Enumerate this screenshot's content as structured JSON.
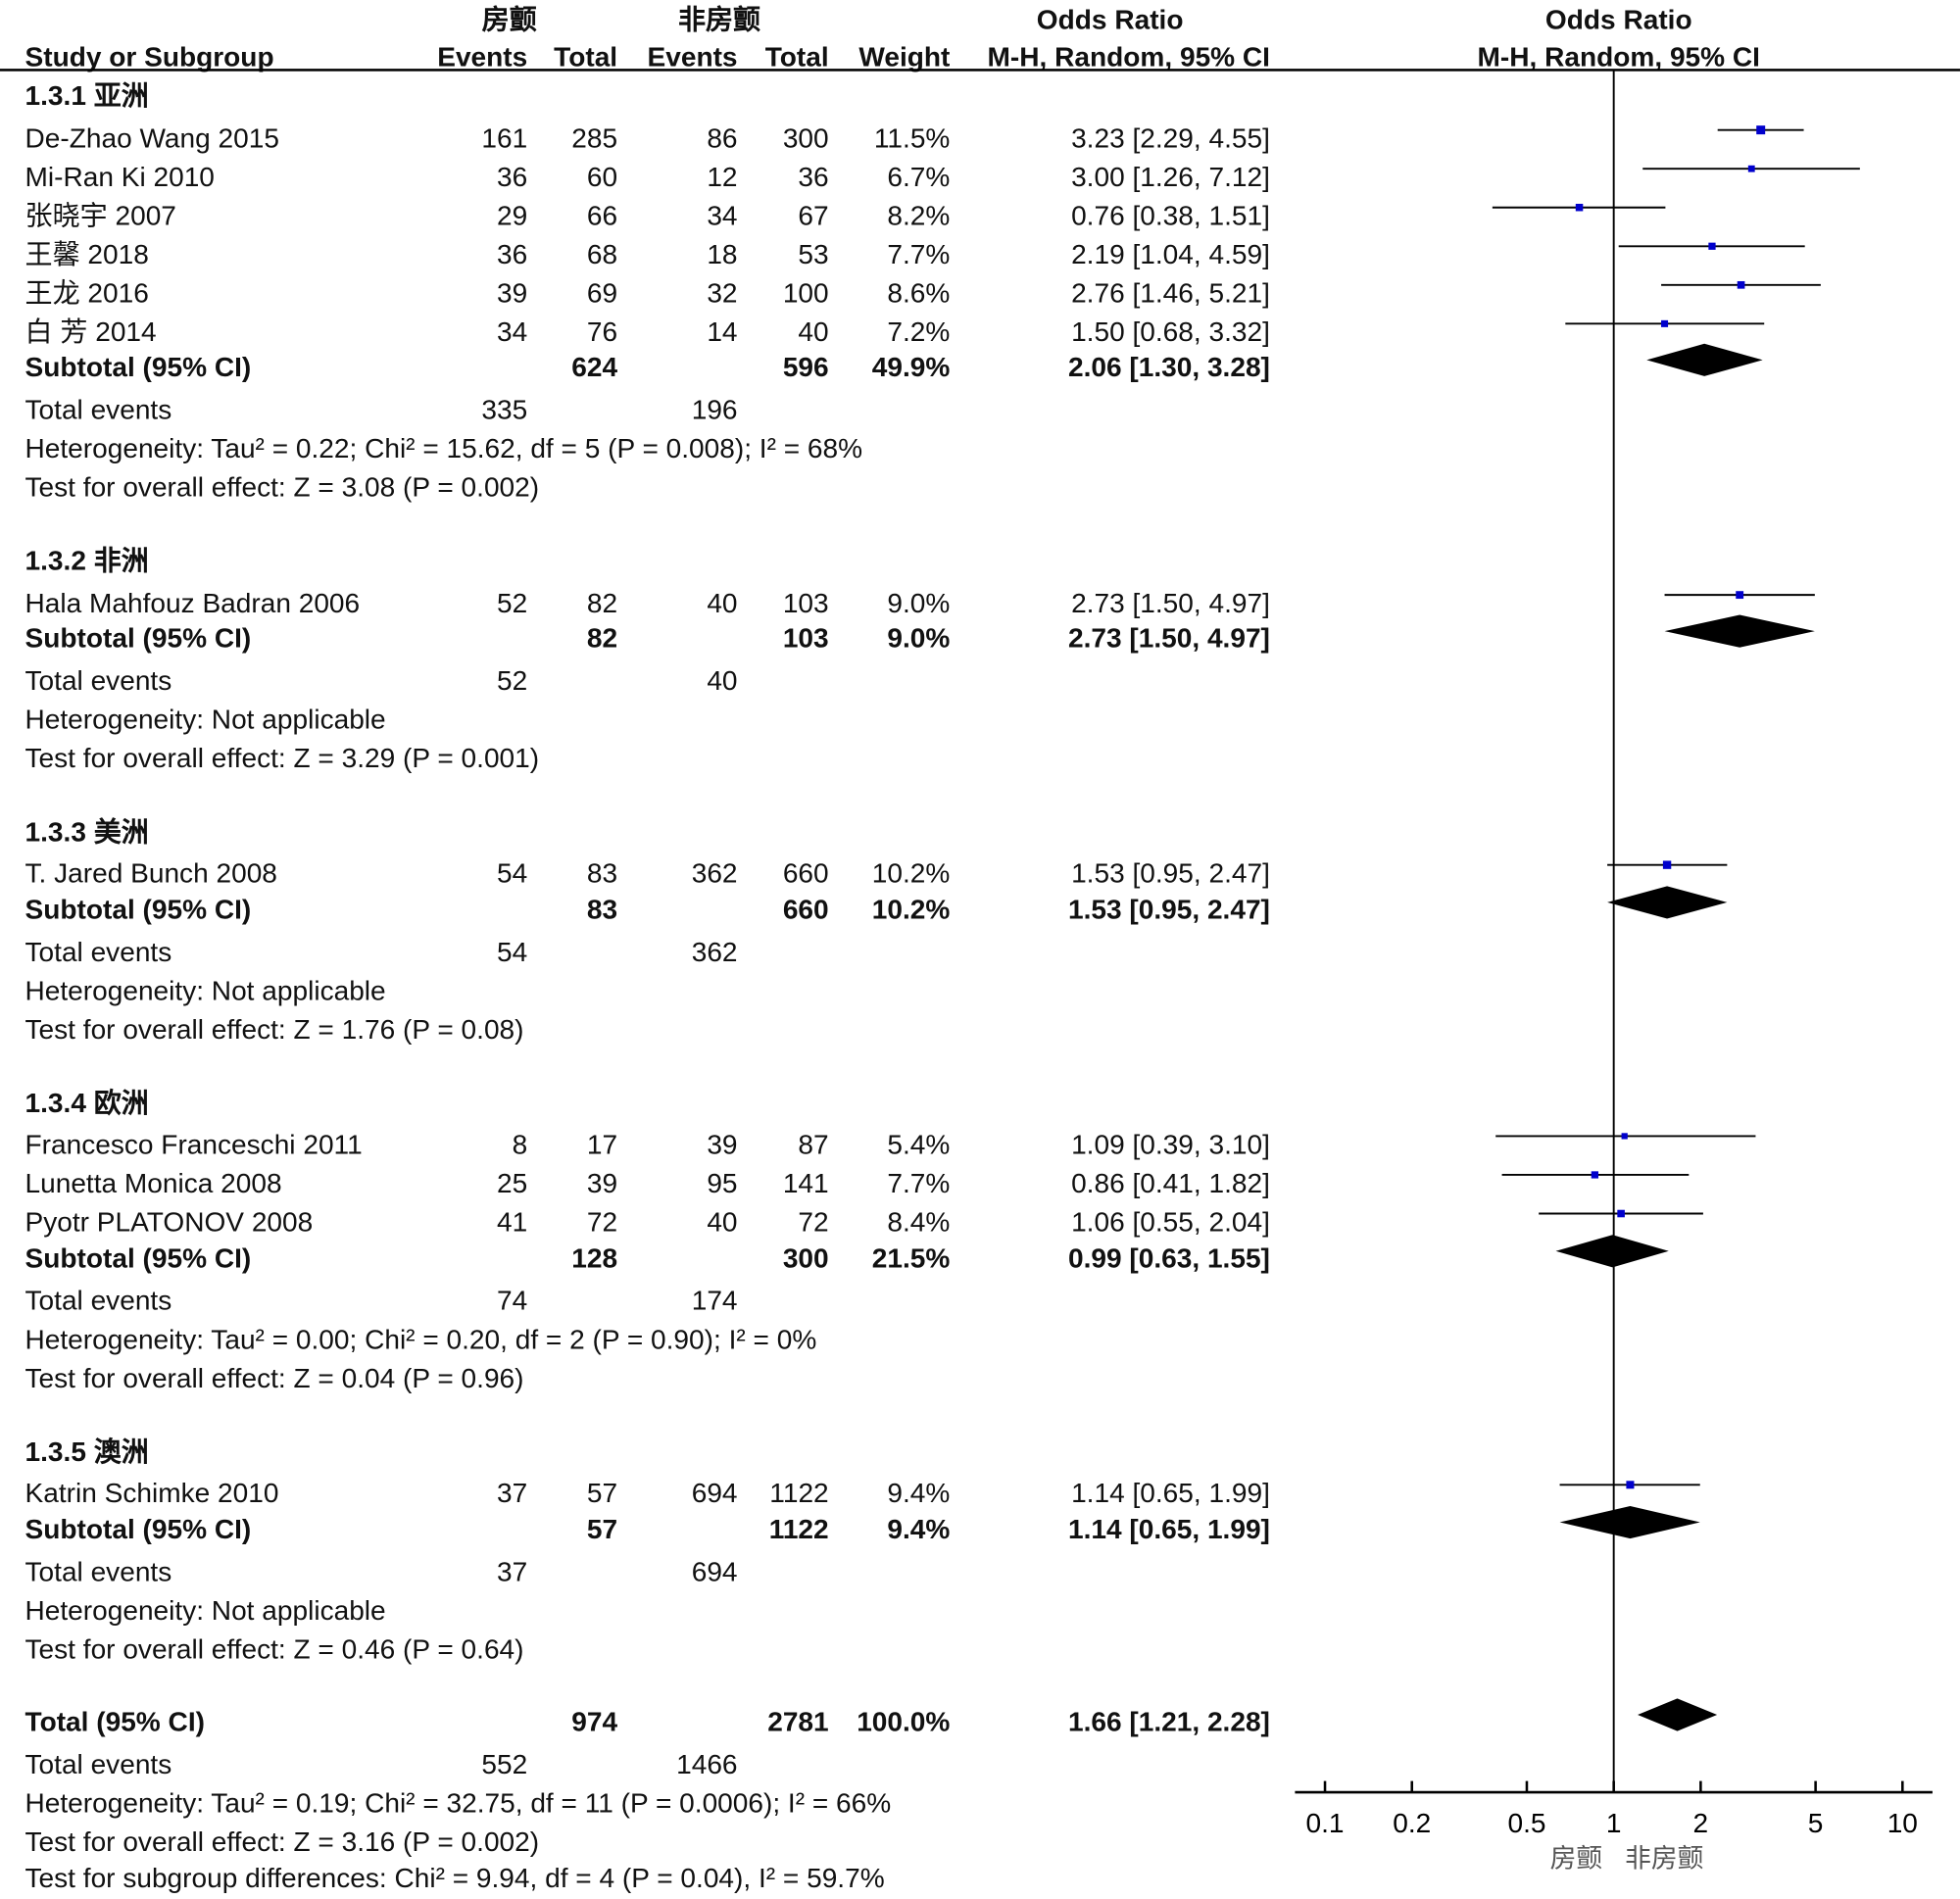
{
  "header": {
    "group1": "房颤",
    "group2": "非房颤",
    "or_title": "Odds Ratio",
    "study_col": "Study or Subgroup",
    "events": "Events",
    "total": "Total",
    "weight": "Weight",
    "method": "M-H, Random, 95% CI",
    "plot_title": "Odds Ratio",
    "plot_method": "M-H, Random, 95% CI"
  },
  "rows": [
    {
      "type": "group",
      "y": 77,
      "name": "1.3.1 亚洲"
    },
    {
      "type": "study",
      "y": 111,
      "name": "De-Zhao Wang 2015",
      "e1": "161",
      "t1": "285",
      "e2": "86",
      "t2": "300",
      "w": "11.5%",
      "ci": "3.23 [2.29, 4.55]"
    },
    {
      "type": "study",
      "y": 142,
      "name": "Mi-Ran Ki 2010",
      "e1": "36",
      "t1": "60",
      "e2": "12",
      "t2": "36",
      "w": "6.7%",
      "ci": "3.00 [1.26, 7.12]"
    },
    {
      "type": "study",
      "y": 173,
      "name": "张晓宇 2007",
      "e1": "29",
      "t1": "66",
      "e2": "34",
      "t2": "67",
      "w": "8.2%",
      "ci": "0.76 [0.38, 1.51]"
    },
    {
      "type": "study",
      "y": 204,
      "name": "王馨 2018",
      "e1": "36",
      "t1": "68",
      "e2": "18",
      "t2": "53",
      "w": "7.7%",
      "ci": "2.19 [1.04, 4.59]"
    },
    {
      "type": "study",
      "y": 235,
      "name": "王龙 2016",
      "e1": "39",
      "t1": "69",
      "e2": "32",
      "t2": "100",
      "w": "8.6%",
      "ci": "2.76 [1.46, 5.21]"
    },
    {
      "type": "study",
      "y": 266,
      "name": "白 芳 2014",
      "e1": "34",
      "t1": "76",
      "e2": "14",
      "t2": "40",
      "w": "7.2%",
      "ci": "1.50 [0.68, 3.32]"
    },
    {
      "type": "subtotal",
      "y": 294,
      "name": "Subtotal (95% CI)",
      "t1": "624",
      "t2": "596",
      "w": "49.9%",
      "ci": "2.06 [1.30, 3.28]"
    },
    {
      "type": "events",
      "y": 328,
      "name": "Total events",
      "e1": "335",
      "e2": "196"
    },
    {
      "type": "text",
      "y": 359,
      "name": "Heterogeneity: Tau² = 0.22; Chi² = 15.62, df = 5 (P = 0.008); I² = 68%"
    },
    {
      "type": "text",
      "y": 390,
      "name": "Test for overall effect: Z = 3.08 (P = 0.002)"
    },
    {
      "type": "group",
      "y": 449,
      "name": "1.3.2 非洲"
    },
    {
      "type": "study",
      "y": 483,
      "name": "Hala Mahfouz Badran 2006",
      "e1": "52",
      "t1": "82",
      "e2": "40",
      "t2": "103",
      "w": "9.0%",
      "ci": "2.73 [1.50, 4.97]"
    },
    {
      "type": "subtotal",
      "y": 511,
      "name": "Subtotal (95% CI)",
      "t1": "82",
      "t2": "103",
      "w": "9.0%",
      "ci": "2.73 [1.50, 4.97]"
    },
    {
      "type": "events",
      "y": 545,
      "name": "Total events",
      "e1": "52",
      "e2": "40"
    },
    {
      "type": "text",
      "y": 576,
      "name": "Heterogeneity: Not applicable"
    },
    {
      "type": "text",
      "y": 607,
      "name": "Test for overall effect: Z = 3.29 (P = 0.001)"
    },
    {
      "type": "group",
      "y": 666,
      "name": "1.3.3 美洲"
    },
    {
      "type": "study",
      "y": 699,
      "name": "T. Jared Bunch 2008",
      "e1": "54",
      "t1": "83",
      "e2": "362",
      "t2": "660",
      "w": "10.2%",
      "ci": "1.53 [0.95, 2.47]"
    },
    {
      "type": "subtotal",
      "y": 728,
      "name": "Subtotal (95% CI)",
      "t1": "83",
      "t2": "660",
      "w": "10.2%",
      "ci": "1.53 [0.95, 2.47]"
    },
    {
      "type": "events",
      "y": 762,
      "name": "Total events",
      "e1": "54",
      "e2": "362"
    },
    {
      "type": "text",
      "y": 793,
      "name": "Heterogeneity: Not applicable"
    },
    {
      "type": "text",
      "y": 824,
      "name": "Test for overall effect: Z = 1.76 (P = 0.08)"
    },
    {
      "type": "group",
      "y": 883,
      "name": "1.3.4 欧洲"
    },
    {
      "type": "study",
      "y": 916,
      "name": "Francesco Franceschi 2011",
      "e1": "8",
      "t1": "17",
      "e2": "39",
      "t2": "87",
      "w": "5.4%",
      "ci": "1.09 [0.39, 3.10]"
    },
    {
      "type": "study",
      "y": 947,
      "name": "Lunetta Monica 2008",
      "e1": "25",
      "t1": "39",
      "e2": "95",
      "t2": "141",
      "w": "7.7%",
      "ci": "0.86 [0.41, 1.82]"
    },
    {
      "type": "study",
      "y": 978,
      "name": "Pyotr PLATONOV 2008",
      "e1": "41",
      "t1": "72",
      "e2": "40",
      "t2": "72",
      "w": "8.4%",
      "ci": "1.06 [0.55, 2.04]"
    },
    {
      "type": "subtotal",
      "y": 1007,
      "name": "Subtotal (95% CI)",
      "t1": "128",
      "t2": "300",
      "w": "21.5%",
      "ci": "0.99 [0.63, 1.55]"
    },
    {
      "type": "events",
      "y": 1041,
      "name": "Total events",
      "e1": "74",
      "e2": "174"
    },
    {
      "type": "text",
      "y": 1072,
      "name": "Heterogeneity: Tau² = 0.00; Chi² = 0.20, df = 2 (P = 0.90); I² = 0%"
    },
    {
      "type": "text",
      "y": 1103,
      "name": "Test for overall effect: Z = 0.04 (P = 0.96)"
    },
    {
      "type": "group",
      "y": 1162,
      "name": "1.3.5 澳洲"
    },
    {
      "type": "study",
      "y": 1195,
      "name": "Katrin Schimke 2010",
      "e1": "37",
      "t1": "57",
      "e2": "694",
      "t2": "1122",
      "w": "9.4%",
      "ci": "1.14 [0.65, 1.99]"
    },
    {
      "type": "subtotal",
      "y": 1224,
      "name": "Subtotal (95% CI)",
      "t1": "57",
      "t2": "1122",
      "w": "9.4%",
      "ci": "1.14 [0.65, 1.99]"
    },
    {
      "type": "events",
      "y": 1258,
      "name": "Total events",
      "e1": "37",
      "e2": "694"
    },
    {
      "type": "text",
      "y": 1289,
      "name": "Heterogeneity: Not applicable"
    },
    {
      "type": "text",
      "y": 1320,
      "name": "Test for overall effect: Z = 0.46 (P = 0.64)"
    },
    {
      "type": "subtotal",
      "y": 1378,
      "name": "Total (95% CI)",
      "t1": "974",
      "t2": "2781",
      "w": "100.0%",
      "ci": "1.66 [1.21, 2.28]",
      "small": true
    },
    {
      "type": "events",
      "y": 1412,
      "name": "Total events",
      "e1": "552",
      "e2": "1466"
    },
    {
      "type": "text",
      "y": 1443,
      "name": "Heterogeneity: Tau² = 0.19; Chi² = 32.75, df = 11 (P = 0.0006); I² = 66%"
    },
    {
      "type": "text",
      "y": 1474,
      "name": "Test for overall effect: Z = 3.16 (P = 0.002)"
    },
    {
      "type": "text",
      "y": 1503,
      "name": "Test for subgroup differences: Chi² = 9.94, df = 4 (P = 0.04), I² = 59.7%"
    }
  ],
  "chart_data": {
    "type": "forest",
    "scale": "log",
    "xlim": [
      0.1,
      10
    ],
    "xticks": [
      "0.1",
      "0.2",
      "0.5",
      "1",
      "2",
      "5",
      "10"
    ],
    "xticks_values": [
      0.1,
      0.2,
      0.5,
      1,
      2,
      5,
      10
    ],
    "favours_left": "房颤",
    "favours_right": "非房颤",
    "square_color": "#0000cc",
    "diamond_color": "#000000",
    "studies": [
      {
        "name": "De-Zhao Wang 2015",
        "or": 3.23,
        "lo": 2.29,
        "hi": 4.55,
        "weight": 11.5
      },
      {
        "name": "Mi-Ran Ki 2010",
        "or": 3.0,
        "lo": 1.26,
        "hi": 7.12,
        "weight": 6.7
      },
      {
        "name": "张晓宇 2007",
        "or": 0.76,
        "lo": 0.38,
        "hi": 1.51,
        "weight": 8.2
      },
      {
        "name": "王馨 2018",
        "or": 2.19,
        "lo": 1.04,
        "hi": 4.59,
        "weight": 7.7
      },
      {
        "name": "王龙 2016",
        "or": 2.76,
        "lo": 1.46,
        "hi": 5.21,
        "weight": 8.6
      },
      {
        "name": "白 芳 2014",
        "or": 1.5,
        "lo": 0.68,
        "hi": 3.32,
        "weight": 7.2
      },
      {
        "name": "Hala Mahfouz Badran 2006",
        "or": 2.73,
        "lo": 1.5,
        "hi": 4.97,
        "weight": 9.0
      },
      {
        "name": "T. Jared Bunch 2008",
        "or": 1.53,
        "lo": 0.95,
        "hi": 2.47,
        "weight": 10.2
      },
      {
        "name": "Francesco Franceschi 2011",
        "or": 1.09,
        "lo": 0.39,
        "hi": 3.1,
        "weight": 5.4
      },
      {
        "name": "Lunetta Monica 2008",
        "or": 0.86,
        "lo": 0.41,
        "hi": 1.82,
        "weight": 7.7
      },
      {
        "name": "Pyotr PLATONOV 2008",
        "or": 1.06,
        "lo": 0.55,
        "hi": 2.04,
        "weight": 8.4
      },
      {
        "name": "Katrin Schimke 2010",
        "or": 1.14,
        "lo": 0.65,
        "hi": 1.99,
        "weight": 9.4
      }
    ],
    "subtotals": [
      {
        "name": "1.3.1 亚洲",
        "or": 2.06,
        "lo": 1.3,
        "hi": 3.28
      },
      {
        "name": "1.3.2 非洲",
        "or": 2.73,
        "lo": 1.5,
        "hi": 4.97
      },
      {
        "name": "1.3.3 美洲",
        "or": 1.53,
        "lo": 0.95,
        "hi": 2.47
      },
      {
        "name": "1.3.4 欧洲",
        "or": 0.99,
        "lo": 0.63,
        "hi": 1.55
      },
      {
        "name": "1.3.5 澳洲",
        "or": 1.14,
        "lo": 0.65,
        "hi": 1.99
      },
      {
        "name": "Total",
        "or": 1.66,
        "lo": 1.21,
        "hi": 2.28
      }
    ]
  }
}
